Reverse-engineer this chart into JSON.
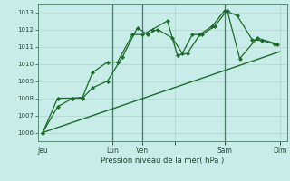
{
  "title": "",
  "xlabel": "Pression niveau de la mer( hPa )",
  "background_color": "#c8ece8",
  "grid_color": "#b0d4cc",
  "line_color": "#1a6b2a",
  "vline_color": "#4a7a6a",
  "ylim": [
    1005.5,
    1013.5
  ],
  "xlim": [
    0,
    100
  ],
  "yticks": [
    1006,
    1007,
    1008,
    1009,
    1010,
    1011,
    1012,
    1013
  ],
  "xtick_positions": [
    2,
    30,
    42,
    55,
    75,
    97
  ],
  "xtick_labels": [
    "Jeu",
    "Lun",
    "Ven",
    "",
    "Sam",
    "Dim"
  ],
  "vline_positions": [
    30,
    42,
    75
  ],
  "series1_x": [
    2,
    8,
    14,
    18,
    22,
    28,
    32,
    38,
    42,
    46,
    52,
    56,
    60,
    65,
    70,
    75,
    80,
    86,
    90,
    95
  ],
  "series1_y": [
    1006.0,
    1007.5,
    1008.0,
    1008.05,
    1009.5,
    1010.1,
    1010.1,
    1011.7,
    1011.7,
    1012.0,
    1012.5,
    1010.5,
    1010.6,
    1011.7,
    1012.2,
    1013.1,
    1012.8,
    1011.4,
    1011.35,
    1011.15
  ],
  "series2_x": [
    2,
    8,
    14,
    18,
    22,
    28,
    34,
    40,
    44,
    48,
    54,
    58,
    62,
    66,
    71,
    76,
    81,
    88,
    96
  ],
  "series2_y": [
    1006.0,
    1008.0,
    1008.0,
    1008.0,
    1008.6,
    1009.0,
    1010.4,
    1012.1,
    1011.7,
    1012.0,
    1011.5,
    1010.6,
    1011.7,
    1011.7,
    1012.2,
    1013.1,
    1010.3,
    1011.5,
    1011.15
  ],
  "trend_x": [
    2,
    97
  ],
  "trend_y": [
    1006.0,
    1010.7
  ]
}
